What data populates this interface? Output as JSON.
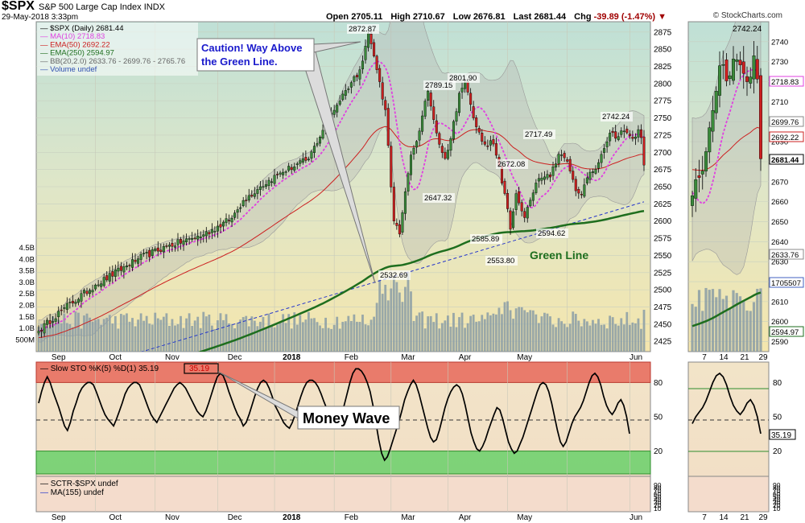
{
  "header": {
    "ticker": "$SPX",
    "name": "S&P 500 Large Cap Index",
    "exchange": "INDX",
    "date": "29-May-2018 3:33pm",
    "open_label": "Open",
    "open": "2705.11",
    "high_label": "High",
    "high": "2710.67",
    "low_label": "Low",
    "low": "2676.81",
    "last_label": "Last",
    "last": "2681.44",
    "chg_label": "Chg",
    "chg": "-39.89 (-1.47%)",
    "copyright": "© StockCharts.com"
  },
  "colors": {
    "up": "#3a8a3a",
    "down": "#cc2020",
    "ma10": "#e040e0",
    "ema50": "#cc2020",
    "ema250": "#1e6e1e",
    "trend": "#2233cc",
    "overbought": "#e8685a",
    "oversold": "#6ad06a"
  },
  "chart_data": [
    {
      "type": "candlestick",
      "title": "$SPX (Daily) 2681.44",
      "legend": [
        {
          "label": "$SPX (Daily) 2681.44",
          "color": "#000000"
        },
        {
          "label": "MA(10) 2718.83",
          "color": "#e040e0"
        },
        {
          "label": "EMA(50) 2692.22",
          "color": "#cc2020"
        },
        {
          "label": "EMA(250) 2594.97",
          "color": "#1e6e1e"
        },
        {
          "label": "BB(20,2.0) 2633.76 - 2699.76 - 2765.76",
          "color": "#a0a0a0"
        },
        {
          "label": "Volume undef",
          "color": "#4060c0"
        }
      ],
      "x_ticks": [
        "Sep",
        "Oct",
        "Nov",
        "Dec",
        "2018",
        "Feb",
        "Mar",
        "Apr",
        "May",
        "Jun"
      ],
      "y_ticks": [
        2425,
        2450,
        2475,
        2500,
        2525,
        2550,
        2575,
        2600,
        2625,
        2650,
        2675,
        2700,
        2725,
        2750,
        2775,
        2800,
        2825,
        2850,
        2875
      ],
      "ylim": [
        2410,
        2890
      ],
      "volume_ticks": [
        "4.5B",
        "4.0B",
        "3.5B",
        "3.0B",
        "2.5B",
        "2.0B",
        "1.5B",
        "1.0B",
        "500M"
      ],
      "close_keypoints": [
        {
          "t": 0,
          "v": 2440
        },
        {
          "t": 8,
          "v": 2470
        },
        {
          "t": 20,
          "v": 2507
        },
        {
          "t": 35,
          "v": 2545
        },
        {
          "t": 45,
          "v": 2563
        },
        {
          "t": 58,
          "v": 2580
        },
        {
          "t": 68,
          "v": 2604
        },
        {
          "t": 72,
          "v": 2630
        },
        {
          "t": 78,
          "v": 2650
        },
        {
          "t": 85,
          "v": 2670
        },
        {
          "t": 95,
          "v": 2690
        },
        {
          "t": 102,
          "v": 2750
        },
        {
          "t": 108,
          "v": 2790
        },
        {
          "t": 113,
          "v": 2820
        },
        {
          "t": 116,
          "v": 2872.87
        },
        {
          "t": 118,
          "v": 2840
        },
        {
          "t": 122,
          "v": 2762
        },
        {
          "t": 125,
          "v": 2600
        },
        {
          "t": 127,
          "v": 2581
        },
        {
          "t": 131,
          "v": 2696
        },
        {
          "t": 134,
          "v": 2731
        },
        {
          "t": 137,
          "v": 2789.15
        },
        {
          "t": 140,
          "v": 2728
        },
        {
          "t": 143,
          "v": 2691
        },
        {
          "t": 145,
          "v": 2720
        },
        {
          "t": 148,
          "v": 2786
        },
        {
          "t": 150,
          "v": 2801.9
        },
        {
          "t": 153,
          "v": 2750
        },
        {
          "t": 156,
          "v": 2716
        },
        {
          "t": 160,
          "v": 2712
        },
        {
          "t": 164,
          "v": 2640
        },
        {
          "t": 166,
          "v": 2588
        },
        {
          "t": 168,
          "v": 2640
        },
        {
          "t": 171,
          "v": 2605
        },
        {
          "t": 174,
          "v": 2641
        },
        {
          "t": 176,
          "v": 2662
        },
        {
          "t": 180,
          "v": 2664
        },
        {
          "t": 183,
          "v": 2697
        },
        {
          "t": 186,
          "v": 2687
        },
        {
          "t": 189,
          "v": 2644
        },
        {
          "t": 191,
          "v": 2638
        },
        {
          "t": 193,
          "v": 2663
        },
        {
          "t": 195,
          "v": 2672
        },
        {
          "t": 198,
          "v": 2697
        },
        {
          "t": 201,
          "v": 2728
        },
        {
          "t": 204,
          "v": 2723
        },
        {
          "t": 206,
          "v": 2731
        },
        {
          "t": 209,
          "v": 2720
        },
        {
          "t": 211,
          "v": 2733
        },
        {
          "t": 212,
          "v": 2721.33
        },
        {
          "t": 213,
          "v": 2681.44
        }
      ],
      "annotations": [
        "2872.87",
        "2789.15",
        "2801.90",
        "2742.24",
        "2717.49",
        "2672.08",
        "2647.32",
        "2585.89",
        "2594.62",
        "2553.80",
        "2532.69"
      ],
      "callouts": [
        "Caution! Way Above the Green Line.",
        "Green Line"
      ]
    },
    {
      "type": "line",
      "title": "Slow STO %K(5) %D(1) 35.19",
      "badge": "35.19",
      "callout": "Money Wave",
      "y_ticks": [
        "80",
        "50",
        "20"
      ],
      "x_ticks": [
        "Sep",
        "Oct",
        "Nov",
        "Dec",
        "2018",
        "Feb",
        "Mar",
        "Apr",
        "May",
        "Jun"
      ],
      "ylim": [
        0,
        100
      ],
      "overbought": 80,
      "oversold": 20,
      "values": [
        62,
        72,
        80,
        85,
        80,
        72,
        65,
        58,
        50,
        42,
        38,
        45,
        55,
        62,
        70,
        75,
        78,
        80,
        80,
        78,
        72,
        65,
        58,
        52,
        48,
        45,
        42,
        48,
        55,
        62,
        70,
        75,
        78,
        80,
        80,
        78,
        72,
        65,
        58,
        52,
        48,
        45,
        50,
        55,
        60,
        65,
        70,
        75,
        78,
        80,
        78,
        75,
        70,
        65,
        60,
        55,
        52,
        50,
        55,
        62,
        70,
        78,
        85,
        88,
        86,
        80,
        72,
        65,
        58,
        52,
        48,
        42,
        45,
        52,
        60,
        68,
        75,
        80,
        82,
        80,
        75,
        68,
        60,
        55,
        50,
        45,
        42,
        40,
        45,
        52,
        60,
        68,
        75,
        80,
        82,
        82,
        80,
        76,
        70,
        63,
        57,
        52,
        48,
        45,
        47,
        52,
        60,
        70,
        80,
        88,
        92,
        92,
        90,
        86,
        80,
        72,
        60,
        45,
        30,
        18,
        12,
        15,
        22,
        30,
        38,
        46,
        55,
        65,
        72,
        78,
        82,
        78,
        70,
        60,
        50,
        40,
        32,
        28,
        30,
        38,
        48,
        58,
        66,
        72,
        76,
        78,
        76,
        70,
        60,
        48,
        36,
        28,
        22,
        20,
        24,
        30,
        38,
        45,
        52,
        58,
        56,
        48,
        38,
        28,
        22,
        18,
        20,
        26,
        32,
        40,
        48,
        56,
        64,
        72,
        78,
        80,
        78,
        72,
        62,
        50,
        38,
        28,
        24,
        28,
        36,
        44,
        50,
        54,
        58,
        64,
        72,
        80,
        86,
        88,
        85,
        78,
        68,
        60,
        55,
        52,
        56,
        62,
        65,
        60,
        50,
        35.19
      ]
    },
    {
      "type": "line",
      "title": "SCTR-$SPX undef",
      "legend": [
        "SCTR-$SPX undef",
        "MA(155) undef"
      ],
      "y_ticks": [
        "90",
        "80",
        "70",
        "60",
        "50",
        "40",
        "30",
        "20",
        "10"
      ],
      "x_ticks": [
        "Sep",
        "Oct",
        "Nov",
        "Dec",
        "2018",
        "Feb",
        "Mar",
        "Apr",
        "May",
        "Jun"
      ]
    },
    {
      "type": "candlestick",
      "title": "Zoom panel",
      "y_ticks": [
        2590,
        2600,
        2610,
        2620,
        2630,
        2640,
        2650,
        2660,
        2670,
        2680,
        2690,
        2700,
        2710,
        2720,
        2730,
        2740
      ],
      "ylim": [
        2585,
        2750
      ],
      "price_tags": [
        "2718.83",
        "2699.76",
        "2692.22",
        "2681.44",
        "2633.76",
        "1705507",
        "2594.97"
      ],
      "peak_label": "2742.24",
      "x_ticks": [
        "7",
        "14",
        "21",
        "29"
      ],
      "sto_ticks": [
        "80",
        "50",
        "20"
      ],
      "sto_badge": "35.19",
      "sctr_ticks": [
        "90",
        "80",
        "70",
        "60",
        "50",
        "40",
        "30",
        "20",
        "10"
      ]
    }
  ]
}
